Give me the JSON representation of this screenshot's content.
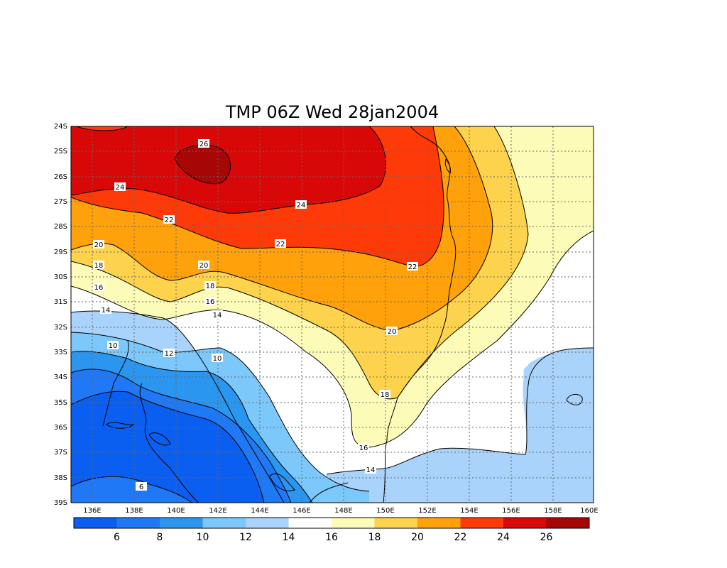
{
  "map": {
    "title": "TMP 06Z Wed 28jan2004",
    "lat_ticks": [
      "24S",
      "25S",
      "26S",
      "27S",
      "28S",
      "29S",
      "30S",
      "31S",
      "32S",
      "33S",
      "34S",
      "35S",
      "36S",
      "37S",
      "38S",
      "39S"
    ],
    "lon_ticks": [
      "136E",
      "138E",
      "140E",
      "142E",
      "144E",
      "146E",
      "148E",
      "150E",
      "152E",
      "154E",
      "156E",
      "158E",
      "160E"
    ],
    "contour_labels": [
      "26",
      "24",
      "24",
      "22",
      "22",
      "22",
      "20",
      "20",
      "20",
      "18",
      "18",
      "18",
      "16",
      "16",
      "16",
      "14",
      "14",
      "14",
      "12",
      "10",
      "10",
      "6"
    ],
    "colorbar": {
      "labels": [
        "6",
        "8",
        "10",
        "12",
        "14",
        "16",
        "18",
        "20",
        "22",
        "24",
        "26"
      ],
      "colors": [
        "#0a5ef0",
        "#1f78f5",
        "#2a96f0",
        "#7cc8fb",
        "#a9d3fa",
        "#ffffff",
        "#fdfbb8",
        "#fdd34d",
        "#fea10a",
        "#fd3a08",
        "#d90808",
        "#a60606"
      ]
    }
  }
}
